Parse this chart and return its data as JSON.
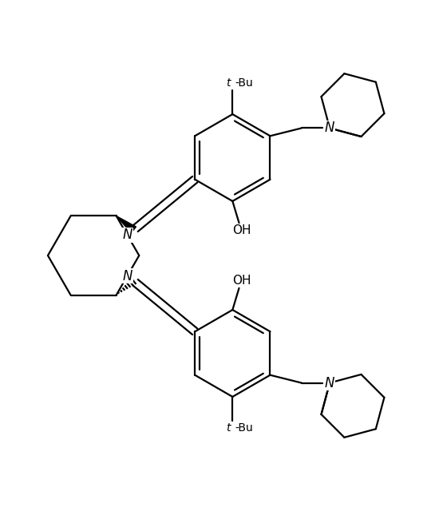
{
  "background": "#ffffff",
  "line_color": "#000000",
  "line_width": 1.6,
  "figsize": [
    5.5,
    6.4
  ],
  "dpi": 100,
  "xlim": [
    0,
    10
  ],
  "ylim": [
    0,
    11.6
  ]
}
